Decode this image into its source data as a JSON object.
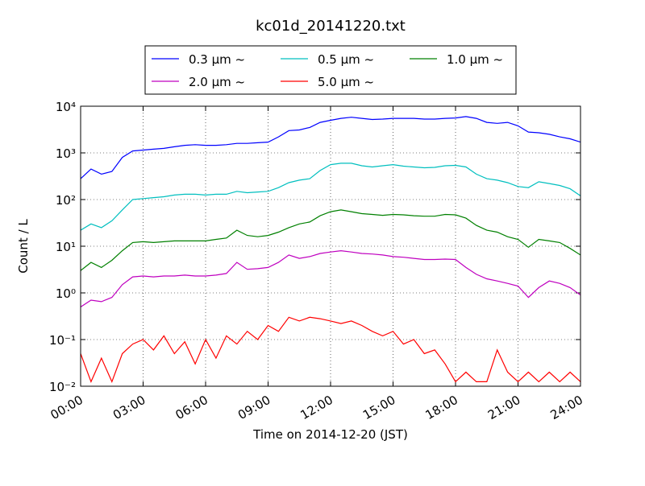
{
  "chart_data": {
    "type": "line",
    "title": "kc01d_20141220.txt",
    "xlabel": "Time on 2014-12-20 (JST)",
    "ylabel": "Count / L",
    "log_y": true,
    "grid": true,
    "legend": "upper center",
    "x": [
      0,
      0.5,
      1,
      1.5,
      2,
      2.5,
      3,
      3.5,
      4,
      4.5,
      5,
      5.5,
      6,
      6.5,
      7,
      7.5,
      8,
      8.5,
      9,
      9.5,
      10,
      10.5,
      11,
      11.5,
      12,
      12.5,
      13,
      13.5,
      14,
      14.5,
      15,
      15.5,
      16,
      16.5,
      17,
      17.5,
      18,
      18.5,
      19,
      19.5,
      20,
      20.5,
      21,
      21.5,
      22,
      22.5,
      23,
      23.5,
      24
    ],
    "xlim": [
      0,
      24
    ],
    "xticks": [
      {
        "value": 0,
        "label": "00:00"
      },
      {
        "value": 3,
        "label": "03:00"
      },
      {
        "value": 6,
        "label": "06:00"
      },
      {
        "value": 9,
        "label": "09:00"
      },
      {
        "value": 12,
        "label": "12:00"
      },
      {
        "value": 15,
        "label": "15:00"
      },
      {
        "value": 18,
        "label": "18:00"
      },
      {
        "value": 21,
        "label": "21:00"
      },
      {
        "value": 24,
        "label": "24:00"
      }
    ],
    "ylim": [
      0.01,
      10000
    ],
    "yticks": [
      {
        "value": 0.01,
        "label": "10⁻²"
      },
      {
        "value": 0.1,
        "label": "10⁻¹"
      },
      {
        "value": 1,
        "label": "10⁰"
      },
      {
        "value": 10,
        "label": "10¹"
      },
      {
        "value": 100,
        "label": "10²"
      },
      {
        "value": 1000,
        "label": "10³"
      },
      {
        "value": 10000,
        "label": "10⁴"
      }
    ],
    "series": [
      {
        "name": "0.3 μm ~",
        "color": "#0000ff",
        "values": [
          280,
          450,
          350,
          400,
          800,
          1100,
          1150,
          1200,
          1250,
          1350,
          1450,
          1500,
          1450,
          1450,
          1500,
          1600,
          1600,
          1650,
          1700,
          2200,
          3000,
          3100,
          3500,
          4500,
          5000,
          5500,
          5800,
          5500,
          5200,
          5300,
          5500,
          5500,
          5500,
          5300,
          5300,
          5500,
          5600,
          6000,
          5500,
          4500,
          4300,
          4500,
          3800,
          2800,
          2700,
          2500,
          2200,
          2000,
          1700
        ]
      },
      {
        "name": "0.5 μm ~",
        "color": "#00bfbf",
        "values": [
          22,
          30,
          25,
          35,
          60,
          100,
          105,
          110,
          115,
          125,
          130,
          130,
          125,
          130,
          130,
          150,
          140,
          145,
          150,
          180,
          230,
          260,
          280,
          420,
          560,
          600,
          600,
          530,
          500,
          530,
          560,
          520,
          500,
          480,
          490,
          530,
          540,
          500,
          350,
          280,
          260,
          230,
          190,
          180,
          240,
          220,
          200,
          170,
          120
        ]
      },
      {
        "name": "1.0 μm ~",
        "color": "#008000",
        "values": [
          3,
          4.5,
          3.5,
          5,
          8,
          12,
          12.5,
          12,
          12.5,
          13,
          13,
          13,
          13,
          14,
          15,
          22,
          17,
          16,
          17,
          20,
          25,
          30,
          33,
          45,
          55,
          60,
          55,
          50,
          48,
          46,
          48,
          47,
          45,
          44,
          44,
          48,
          47,
          40,
          28,
          22,
          20,
          16,
          14,
          9.5,
          14,
          13,
          12,
          9,
          6.5
        ]
      },
      {
        "name": "2.0 μm ~",
        "color": "#bf00bf",
        "values": [
          0.5,
          0.7,
          0.65,
          0.8,
          1.5,
          2.2,
          2.3,
          2.2,
          2.3,
          2.3,
          2.4,
          2.3,
          2.3,
          2.4,
          2.6,
          4.5,
          3.2,
          3.3,
          3.5,
          4.5,
          6.5,
          5.5,
          6,
          7,
          7.5,
          8,
          7.5,
          7,
          6.8,
          6.5,
          6,
          5.8,
          5.5,
          5.2,
          5.2,
          5.3,
          5.2,
          3.5,
          2.5,
          2,
          1.8,
          1.6,
          1.4,
          0.8,
          1.3,
          1.8,
          1.6,
          1.3,
          0.9
        ]
      },
      {
        "name": "5.0 μm ~",
        "color": "#ff0000",
        "values": [
          0.05,
          0.0125,
          0.04,
          0.0125,
          0.05,
          0.08,
          0.1,
          0.06,
          0.12,
          0.05,
          0.09,
          0.03,
          0.1,
          0.04,
          0.12,
          0.08,
          0.15,
          0.1,
          0.2,
          0.15,
          0.3,
          0.25,
          0.3,
          0.28,
          0.25,
          0.22,
          0.25,
          0.2,
          0.15,
          0.12,
          0.15,
          0.08,
          0.1,
          0.05,
          0.06,
          0.03,
          0.0125,
          0.02,
          0.0125,
          0.0125,
          0.06,
          0.02,
          0.0125,
          0.02,
          0.0125,
          0.02,
          0.0125,
          0.02,
          0.0125
        ]
      }
    ]
  }
}
